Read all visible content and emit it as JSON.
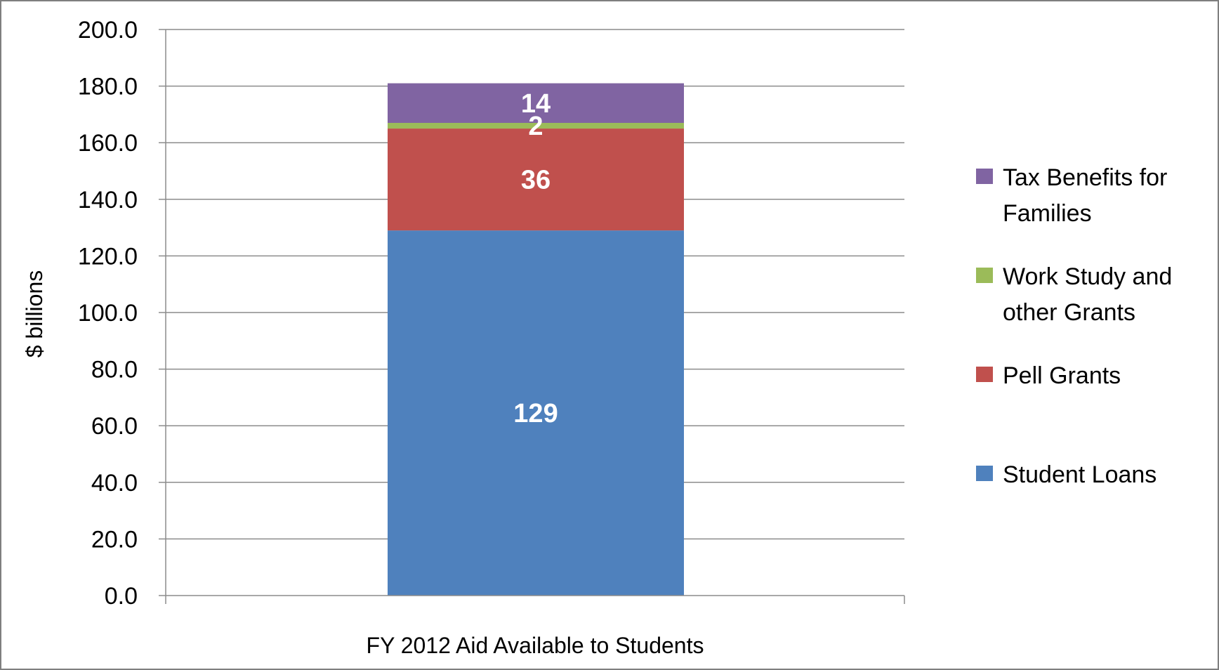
{
  "chart_data": {
    "type": "bar",
    "stacked": true,
    "categories": [
      "FY 2012 Aid Available to Students"
    ],
    "series": [
      {
        "name": "Student Loans",
        "values": [
          129
        ],
        "color": "#4F81BD",
        "label": "129"
      },
      {
        "name": "Pell Grants",
        "values": [
          36
        ],
        "color": "#C0504D",
        "label": "36"
      },
      {
        "name": "Work Study and other Grants",
        "values": [
          2
        ],
        "color": "#9BBB59",
        "label": "2"
      },
      {
        "name": "Tax Benefits for Families",
        "values": [
          14
        ],
        "color": "#8064A2",
        "label": "14"
      }
    ],
    "legend_order": [
      "Tax Benefits for Families",
      "Work Study and other Grants",
      "Pell Grants",
      "Student Loans"
    ],
    "legend_lines": {
      "Tax Benefits for Families": [
        "Tax Benefits for",
        "Families"
      ],
      "Work Study and other Grants": [
        "Work Study and",
        "other Grants"
      ],
      "Pell Grants": [
        "Pell Grants"
      ],
      "Student Loans": [
        "Student Loans"
      ]
    },
    "yticks": [
      "0.0",
      "20.0",
      "40.0",
      "60.0",
      "80.0",
      "100.0",
      "120.0",
      "140.0",
      "160.0",
      "180.0",
      "200.0"
    ],
    "ylim": [
      0,
      200
    ],
    "ylabel": "$ billions",
    "xlabel": "",
    "title": "",
    "grid": true,
    "legend_position": "right"
  }
}
